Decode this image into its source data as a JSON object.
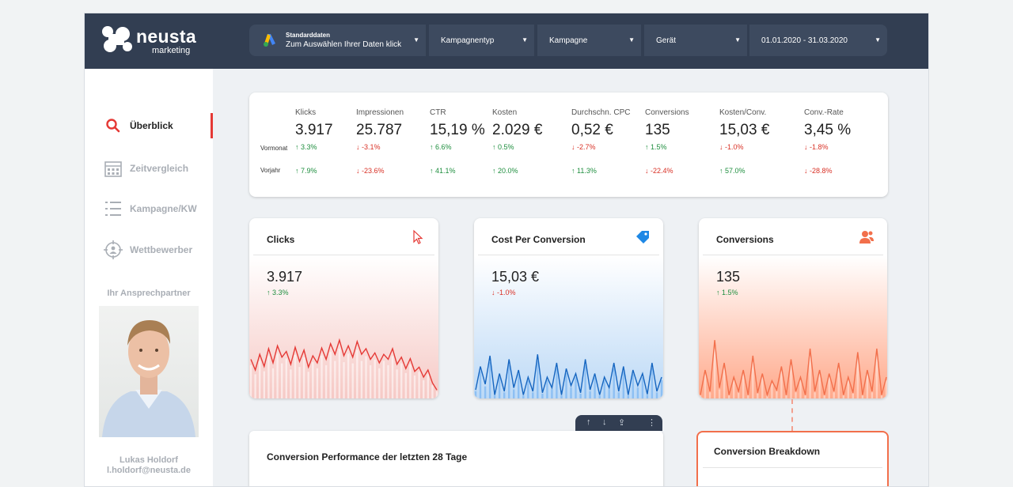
{
  "brand": {
    "name": "neusta",
    "sub": "marketing"
  },
  "filters": {
    "data_source": {
      "line1": "Standarddaten",
      "line2": "Zum Auswählen Ihrer Daten klicken",
      "icon": "google-ads-icon"
    },
    "campaign_type": "Kampagnentyp",
    "campaign": "Kampagne",
    "device": "Gerät",
    "date_range": "01.01.2020 - 31.03.2020"
  },
  "nav": [
    {
      "label": "Überblick",
      "icon": "search-icon",
      "active": true
    },
    {
      "label": "Zeitvergleich",
      "icon": "calendar-icon",
      "active": false
    },
    {
      "label": "Kampagne/KW",
      "icon": "list-icon",
      "active": false
    },
    {
      "label": "Wettbewerber",
      "icon": "target-icon",
      "active": false
    }
  ],
  "contact": {
    "heading": "Ihr Ansprechpartner",
    "name": "Lukas Holdorf",
    "email": "l.holdorf@neusta.de"
  },
  "kpi": {
    "row_labels": {
      "prev_month": "Vormonat",
      "prev_year": "Vorjahr"
    },
    "columns": [
      {
        "label": "Klicks",
        "value": "3.917",
        "mom": "3.3%",
        "mom_dir": "up",
        "yoy": "7.9%",
        "yoy_dir": "up"
      },
      {
        "label": "Impressionen",
        "value": "25.787",
        "mom": "-3.1%",
        "mom_dir": "down",
        "yoy": "-23.6%",
        "yoy_dir": "down"
      },
      {
        "label": "CTR",
        "value": "15,19 %",
        "mom": "6.6%",
        "mom_dir": "up",
        "yoy": "41.1%",
        "yoy_dir": "up"
      },
      {
        "label": "Kosten",
        "value": "2.029 €",
        "mom": "0.5%",
        "mom_dir": "up",
        "yoy": "20.0%",
        "yoy_dir": "up"
      },
      {
        "label": "Durchschn. CPC",
        "value": "0,52 €",
        "mom": "-2.7%",
        "mom_dir": "down",
        "yoy": "11.3%",
        "yoy_dir": "up"
      },
      {
        "label": "Conversions",
        "value": "135",
        "mom": "1.5%",
        "mom_dir": "up",
        "yoy": "-22.4%",
        "yoy_dir": "down"
      },
      {
        "label": "Kosten/Conv.",
        "value": "15,03 €",
        "mom": "-1.0%",
        "mom_dir": "down",
        "yoy": "57.0%",
        "yoy_dir": "up"
      },
      {
        "label": "Conv.-Rate",
        "value": "3,45 %",
        "mom": "-1.8%",
        "mom_dir": "down",
        "yoy": "-28.8%",
        "yoy_dir": "down"
      }
    ]
  },
  "cards": {
    "clicks": {
      "title": "Clicks",
      "value": "3.917",
      "delta": "3.3%",
      "dir": "up",
      "icon": "cursor-icon",
      "color": "#e53935"
    },
    "cpc": {
      "title": "Cost Per Conversion",
      "value": "15,03 €",
      "delta": "-1.0%",
      "dir": "down",
      "icon": "tag-icon",
      "color": "#1565c0"
    },
    "conversions": {
      "title": "Conversions",
      "value": "135",
      "delta": "1.5%",
      "dir": "up",
      "icon": "users-icon",
      "color": "#f26f4b"
    }
  },
  "sparks": {
    "clicks": [
      0.55,
      0.4,
      0.62,
      0.45,
      0.7,
      0.5,
      0.74,
      0.58,
      0.66,
      0.48,
      0.72,
      0.52,
      0.68,
      0.44,
      0.6,
      0.5,
      0.71,
      0.55,
      0.77,
      0.62,
      0.82,
      0.6,
      0.74,
      0.58,
      0.8,
      0.62,
      0.7,
      0.55,
      0.64,
      0.5,
      0.62,
      0.55,
      0.7,
      0.48,
      0.58,
      0.42,
      0.56,
      0.38,
      0.44,
      0.3,
      0.4,
      0.22,
      0.12
    ],
    "cpc": [
      0.12,
      0.45,
      0.2,
      0.6,
      0.05,
      0.35,
      0.1,
      0.55,
      0.15,
      0.4,
      0.05,
      0.3,
      0.1,
      0.62,
      0.08,
      0.3,
      0.15,
      0.5,
      0.05,
      0.42,
      0.18,
      0.35,
      0.08,
      0.55,
      0.12,
      0.35,
      0.05,
      0.3,
      0.15,
      0.5,
      0.1,
      0.45,
      0.05,
      0.4,
      0.18,
      0.35,
      0.06,
      0.5,
      0.1,
      0.3
    ],
    "conversions": [
      0.05,
      0.4,
      0.1,
      0.82,
      0.15,
      0.5,
      0.05,
      0.3,
      0.1,
      0.4,
      0.05,
      0.6,
      0.08,
      0.35,
      0.05,
      0.25,
      0.12,
      0.45,
      0.05,
      0.55,
      0.1,
      0.3,
      0.05,
      0.7,
      0.1,
      0.4,
      0.05,
      0.35,
      0.1,
      0.5,
      0.05,
      0.3,
      0.08,
      0.65,
      0.05,
      0.4,
      0.1,
      0.7,
      0.05,
      0.3
    ]
  },
  "toolbar": {
    "up": "↑",
    "down": "↓",
    "export": "⇪",
    "more": "⋮"
  },
  "sections": {
    "performance": "Conversion Performance der letzten 28 Tage",
    "breakdown": "Conversion Breakdown"
  }
}
